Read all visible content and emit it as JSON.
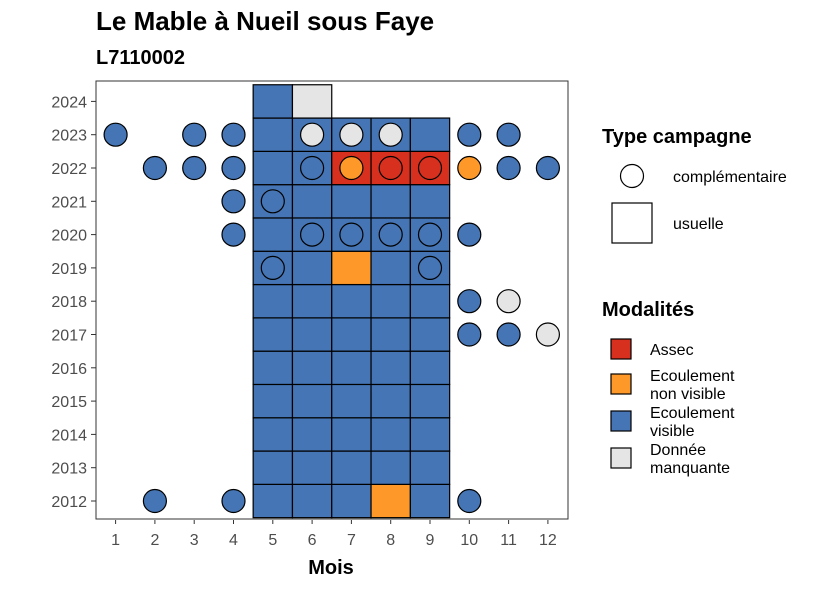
{
  "chart_data": {
    "type": "heatmap",
    "title": "Le Mable à Nueil sous Faye",
    "subtitle": "L7110002",
    "xlabel": "Mois",
    "ylabel": "",
    "x_ticks": [
      1,
      2,
      3,
      4,
      5,
      6,
      7,
      8,
      9,
      10,
      11,
      12
    ],
    "y_ticks": [
      2012,
      2013,
      2014,
      2015,
      2016,
      2017,
      2018,
      2019,
      2020,
      2021,
      2022,
      2023,
      2024
    ],
    "legend_shape": {
      "title": "Type campagne",
      "items": [
        {
          "key": "complementaire",
          "label": "complémentaire",
          "shape": "circle"
        },
        {
          "key": "usuelle",
          "label": "usuelle",
          "shape": "square"
        }
      ]
    },
    "legend_fill": {
      "title": "Modalités",
      "items": [
        {
          "key": "assec",
          "label": [
            "Assec"
          ],
          "color": "#d7301f"
        },
        {
          "key": "nonvisible",
          "label": [
            "Ecoulement",
            "non visible"
          ],
          "color": "#fe9929"
        },
        {
          "key": "visible",
          "label": [
            "Ecoulement",
            "visible"
          ],
          "color": "#4575b4"
        },
        {
          "key": "manquante",
          "label": [
            "Donnée",
            "manquante"
          ],
          "color": "#e5e5e5"
        }
      ]
    },
    "usuelle": [
      {
        "year": 2012,
        "months": [
          5,
          6,
          7,
          9
        ],
        "exceptions": {
          "8": "nonvisible"
        }
      },
      {
        "year": 2013,
        "months": [
          5,
          6,
          7,
          8,
          9
        ]
      },
      {
        "year": 2014,
        "months": [
          5,
          6,
          7,
          8,
          9
        ]
      },
      {
        "year": 2015,
        "months": [
          5,
          6,
          7,
          8,
          9
        ]
      },
      {
        "year": 2016,
        "months": [
          5,
          6,
          7,
          8,
          9
        ]
      },
      {
        "year": 2017,
        "months": [
          5,
          6,
          7,
          8,
          9
        ]
      },
      {
        "year": 2018,
        "months": [
          5,
          6,
          7,
          8,
          9
        ]
      },
      {
        "year": 2019,
        "months": [
          5,
          6,
          8,
          9
        ],
        "exceptions": {
          "7": "nonvisible"
        }
      },
      {
        "year": 2020,
        "months": [
          5,
          6,
          7,
          8,
          9
        ]
      },
      {
        "year": 2021,
        "months": [
          5,
          6,
          7,
          8,
          9
        ]
      },
      {
        "year": 2022,
        "months": [
          5,
          6
        ],
        "exceptions": {
          "7": "assec",
          "8": "assec",
          "9": "assec"
        }
      },
      {
        "year": 2023,
        "months": [
          5,
          6,
          7,
          8,
          9
        ]
      },
      {
        "year": 2024,
        "months": [
          5
        ],
        "exceptions": {
          "6": "manquante"
        }
      }
    ],
    "complementaire": [
      {
        "year": 2012,
        "month": 2,
        "modalite": "visible"
      },
      {
        "year": 2012,
        "month": 4,
        "modalite": "visible"
      },
      {
        "year": 2012,
        "month": 10,
        "modalite": "visible"
      },
      {
        "year": 2017,
        "month": 10,
        "modalite": "visible"
      },
      {
        "year": 2017,
        "month": 11,
        "modalite": "visible"
      },
      {
        "year": 2017,
        "month": 12,
        "modalite": "manquante"
      },
      {
        "year": 2018,
        "month": 10,
        "modalite": "visible"
      },
      {
        "year": 2018,
        "month": 11,
        "modalite": "manquante"
      },
      {
        "year": 2019,
        "month": 5,
        "modalite": "visible"
      },
      {
        "year": 2019,
        "month": 9,
        "modalite": "visible"
      },
      {
        "year": 2020,
        "month": 4,
        "modalite": "visible"
      },
      {
        "year": 2020,
        "month": 6,
        "modalite": "visible"
      },
      {
        "year": 2020,
        "month": 7,
        "modalite": "visible"
      },
      {
        "year": 2020,
        "month": 8,
        "modalite": "visible"
      },
      {
        "year": 2020,
        "month": 9,
        "modalite": "visible"
      },
      {
        "year": 2020,
        "month": 10,
        "modalite": "visible"
      },
      {
        "year": 2021,
        "month": 4,
        "modalite": "visible"
      },
      {
        "year": 2021,
        "month": 5,
        "modalite": "visible"
      },
      {
        "year": 2022,
        "month": 2,
        "modalite": "visible"
      },
      {
        "year": 2022,
        "month": 3,
        "modalite": "visible"
      },
      {
        "year": 2022,
        "month": 4,
        "modalite": "visible"
      },
      {
        "year": 2022,
        "month": 6,
        "modalite": "visible"
      },
      {
        "year": 2022,
        "month": 7,
        "modalite": "nonvisible"
      },
      {
        "year": 2022,
        "month": 8,
        "modalite": "assec"
      },
      {
        "year": 2022,
        "month": 9,
        "modalite": "assec"
      },
      {
        "year": 2022,
        "month": 10,
        "modalite": "nonvisible"
      },
      {
        "year": 2022,
        "month": 11,
        "modalite": "visible"
      },
      {
        "year": 2022,
        "month": 12,
        "modalite": "visible"
      },
      {
        "year": 2023,
        "month": 1,
        "modalite": "visible"
      },
      {
        "year": 2023,
        "month": 3,
        "modalite": "visible"
      },
      {
        "year": 2023,
        "month": 4,
        "modalite": "visible"
      },
      {
        "year": 2023,
        "month": 6,
        "modalite": "manquante"
      },
      {
        "year": 2023,
        "month": 7,
        "modalite": "manquante"
      },
      {
        "year": 2023,
        "month": 8,
        "modalite": "manquante"
      },
      {
        "year": 2023,
        "month": 10,
        "modalite": "visible"
      },
      {
        "year": 2023,
        "month": 11,
        "modalite": "visible"
      }
    ]
  }
}
